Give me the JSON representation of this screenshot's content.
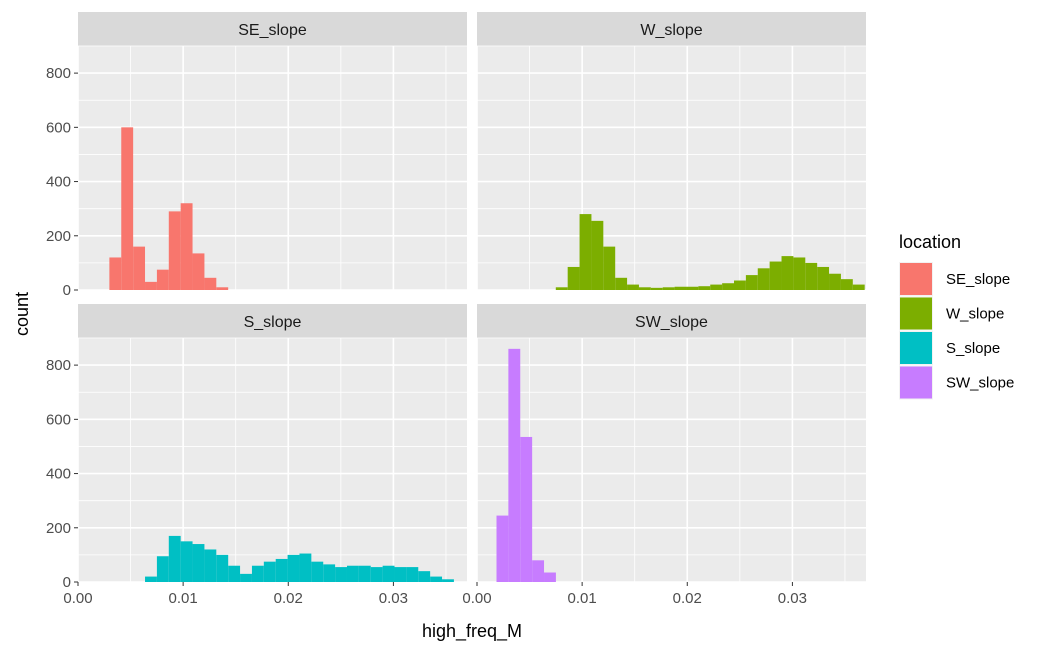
{
  "chart_data": {
    "type": "histogram",
    "facet_layout": "2x2",
    "xlabel": "high_freq_M",
    "ylabel": "count",
    "xlim": [
      0.0,
      0.037
    ],
    "ylim": [
      0,
      900
    ],
    "bin_width": 0.00113,
    "x_ticks": [
      0.0,
      0.01,
      0.02,
      0.03
    ],
    "x_tick_labels": [
      "0.00",
      "0.01",
      "0.02",
      "0.03"
    ],
    "y_ticks": [
      0,
      200,
      400,
      600,
      800
    ],
    "y_tick_labels": [
      "0",
      "200",
      "400",
      "600",
      "800"
    ],
    "grid": true,
    "legend": {
      "title": "location",
      "position": "right",
      "entries": [
        {
          "label": "SE_slope",
          "color": "#F8766D"
        },
        {
          "label": "W_slope",
          "color": "#7CAE00"
        },
        {
          "label": "S_slope",
          "color": "#00BFC4"
        },
        {
          "label": "SW_slope",
          "color": "#C77CFF"
        }
      ]
    },
    "panels": [
      {
        "strip": "SE_slope",
        "color": "#F8766D",
        "bins": [
          {
            "x": 0.00355,
            "y": 120
          },
          {
            "x": 0.00468,
            "y": 600
          },
          {
            "x": 0.00581,
            "y": 160
          },
          {
            "x": 0.00694,
            "y": 30
          },
          {
            "x": 0.00807,
            "y": 75
          },
          {
            "x": 0.0092,
            "y": 290
          },
          {
            "x": 0.01033,
            "y": 320
          },
          {
            "x": 0.01146,
            "y": 135
          },
          {
            "x": 0.01259,
            "y": 45
          },
          {
            "x": 0.01372,
            "y": 10
          }
        ]
      },
      {
        "strip": "W_slope",
        "color": "#7CAE00",
        "bins": [
          {
            "x": 0.00806,
            "y": 10
          },
          {
            "x": 0.00919,
            "y": 85
          },
          {
            "x": 0.01032,
            "y": 280
          },
          {
            "x": 0.01145,
            "y": 255
          },
          {
            "x": 0.01258,
            "y": 160
          },
          {
            "x": 0.01371,
            "y": 45
          },
          {
            "x": 0.01484,
            "y": 20
          },
          {
            "x": 0.01597,
            "y": 10
          },
          {
            "x": 0.0171,
            "y": 8
          },
          {
            "x": 0.01823,
            "y": 10
          },
          {
            "x": 0.01936,
            "y": 12
          },
          {
            "x": 0.02049,
            "y": 12
          },
          {
            "x": 0.02162,
            "y": 14
          },
          {
            "x": 0.02275,
            "y": 20
          },
          {
            "x": 0.02388,
            "y": 25
          },
          {
            "x": 0.02501,
            "y": 35
          },
          {
            "x": 0.02614,
            "y": 55
          },
          {
            "x": 0.02727,
            "y": 80
          },
          {
            "x": 0.0284,
            "y": 105
          },
          {
            "x": 0.02953,
            "y": 125
          },
          {
            "x": 0.03066,
            "y": 120
          },
          {
            "x": 0.03179,
            "y": 100
          },
          {
            "x": 0.03292,
            "y": 85
          },
          {
            "x": 0.03405,
            "y": 60
          },
          {
            "x": 0.03518,
            "y": 40
          },
          {
            "x": 0.03631,
            "y": 20
          }
        ]
      },
      {
        "strip": "S_slope",
        "color": "#00BFC4",
        "bins": [
          {
            "x": 0.00694,
            "y": 20
          },
          {
            "x": 0.00807,
            "y": 95
          },
          {
            "x": 0.0092,
            "y": 170
          },
          {
            "x": 0.01033,
            "y": 150
          },
          {
            "x": 0.01146,
            "y": 140
          },
          {
            "x": 0.01259,
            "y": 120
          },
          {
            "x": 0.01372,
            "y": 100
          },
          {
            "x": 0.01485,
            "y": 60
          },
          {
            "x": 0.01598,
            "y": 30
          },
          {
            "x": 0.01711,
            "y": 60
          },
          {
            "x": 0.01824,
            "y": 75
          },
          {
            "x": 0.01937,
            "y": 85
          },
          {
            "x": 0.0205,
            "y": 100
          },
          {
            "x": 0.02163,
            "y": 105
          },
          {
            "x": 0.02276,
            "y": 75
          },
          {
            "x": 0.02389,
            "y": 65
          },
          {
            "x": 0.02502,
            "y": 55
          },
          {
            "x": 0.02615,
            "y": 60
          },
          {
            "x": 0.02728,
            "y": 60
          },
          {
            "x": 0.02841,
            "y": 55
          },
          {
            "x": 0.02954,
            "y": 60
          },
          {
            "x": 0.03067,
            "y": 55
          },
          {
            "x": 0.0318,
            "y": 55
          },
          {
            "x": 0.03293,
            "y": 40
          },
          {
            "x": 0.03406,
            "y": 20
          },
          {
            "x": 0.03519,
            "y": 10
          }
        ]
      },
      {
        "strip": "SW_slope",
        "color": "#C77CFF",
        "bins": [
          {
            "x": 0.00242,
            "y": 245
          },
          {
            "x": 0.00355,
            "y": 860
          },
          {
            "x": 0.00468,
            "y": 535
          },
          {
            "x": 0.00581,
            "y": 80
          },
          {
            "x": 0.00694,
            "y": 35
          }
        ]
      }
    ]
  }
}
